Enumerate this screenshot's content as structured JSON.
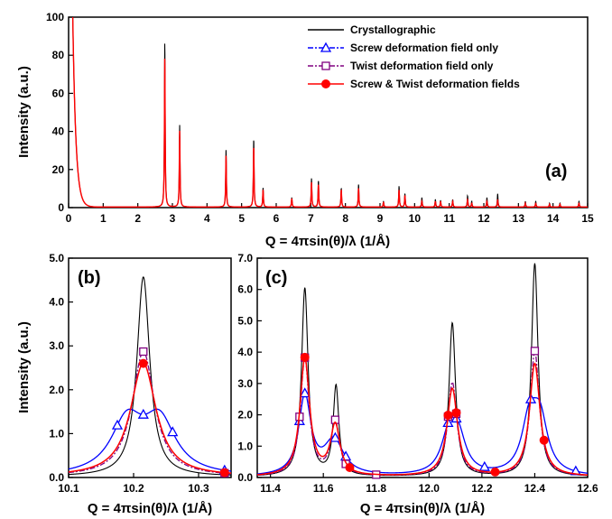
{
  "chart_data": [
    {
      "panel": "(a)",
      "type": "line",
      "xlabel": "Q = 4πsin(θ)/λ (1/Å)",
      "ylabel": "Intensity (a.u.)",
      "xlim": [
        0,
        15
      ],
      "ylim": [
        0,
        100
      ],
      "xticks": [
        "0",
        "1",
        "2",
        "3",
        "4",
        "5",
        "6",
        "7",
        "8",
        "9",
        "10",
        "11",
        "12",
        "13",
        "14",
        "15"
      ],
      "yticks": [
        "0",
        "20",
        "40",
        "60",
        "80",
        "100"
      ],
      "legend": {
        "position": "top-right",
        "entries": [
          {
            "name": "Crystallographic",
            "color": "#000000",
            "marker": "none",
            "dash": "solid"
          },
          {
            "name": "Screw deformation field only",
            "color": "#0000ff",
            "marker": "triangle",
            "dash": "dashdot"
          },
          {
            "name": "Twist deformation field only",
            "color": "#800080",
            "marker": "square",
            "dash": "dashdot"
          },
          {
            "name": "Screw & Twist deformation fields",
            "color": "#ff0000",
            "marker": "circle",
            "dash": "solid"
          }
        ]
      },
      "peaks": [
        {
          "q": 2.78,
          "crystallographic": 87,
          "deformed": 79
        },
        {
          "q": 3.21,
          "crystallographic": 43,
          "deformed": 40
        },
        {
          "q": 4.55,
          "crystallographic": 30,
          "deformed": 27
        },
        {
          "q": 5.35,
          "crystallographic": 36,
          "deformed": 32
        },
        {
          "q": 5.62,
          "crystallographic": 10,
          "deformed": 9
        },
        {
          "q": 6.45,
          "crystallographic": 5,
          "deformed": 4.5
        },
        {
          "q": 7.02,
          "crystallographic": 15,
          "deformed": 13
        },
        {
          "q": 7.22,
          "crystallographic": 14,
          "deformed": 12
        },
        {
          "q": 7.88,
          "crystallographic": 10,
          "deformed": 9
        },
        {
          "q": 8.38,
          "crystallographic": 12,
          "deformed": 10
        },
        {
          "q": 9.1,
          "crystallographic": 3,
          "deformed": 2.5
        },
        {
          "q": 9.55,
          "crystallographic": 11,
          "deformed": 9
        },
        {
          "q": 9.72,
          "crystallographic": 7,
          "deformed": 6
        },
        {
          "q": 10.21,
          "crystallographic": 5,
          "deformed": 3
        },
        {
          "q": 10.6,
          "crystallographic": 4,
          "deformed": 3
        },
        {
          "q": 10.75,
          "crystallographic": 3.5,
          "deformed": 3
        },
        {
          "q": 11.1,
          "crystallographic": 4,
          "deformed": 3
        },
        {
          "q": 11.53,
          "crystallographic": 6,
          "deformed": 4
        },
        {
          "q": 11.65,
          "crystallographic": 3,
          "deformed": 2
        },
        {
          "q": 12.09,
          "crystallographic": 5,
          "deformed": 3
        },
        {
          "q": 12.4,
          "crystallographic": 7,
          "deformed": 4
        },
        {
          "q": 13.2,
          "crystallographic": 3,
          "deformed": 2
        },
        {
          "q": 13.5,
          "crystallographic": 3,
          "deformed": 2
        },
        {
          "q": 13.9,
          "crystallographic": 2,
          "deformed": 1.5
        },
        {
          "q": 14.2,
          "crystallographic": 2,
          "deformed": 1.5
        },
        {
          "q": 14.75,
          "crystallographic": 3,
          "deformed": 2
        }
      ],
      "low_q_decay": {
        "start_q": 0.12,
        "start_value": 100,
        "decay_length": 0.09
      }
    },
    {
      "panel": "(b)",
      "type": "line",
      "xlabel": "Q = 4πsin(θ)/λ (1/Å)",
      "ylabel": "Intensity (a.u.)",
      "xlim": [
        10.1,
        10.35
      ],
      "ylim": [
        0,
        5
      ],
      "xticks": [
        "10.1",
        "10.2",
        "10.3"
      ],
      "yticks": [
        "0.0",
        "1.0",
        "2.0",
        "3.0",
        "4.0",
        "5.0"
      ],
      "series": [
        {
          "name": "Crystallographic",
          "peaks": [
            {
              "q": 10.215,
              "height": 4.55,
              "width": 0.012
            }
          ]
        },
        {
          "name": "Screw deformation field only",
          "peaks": [
            {
              "q": 10.19,
              "height": 1.2,
              "width": 0.03
            },
            {
              "q": 10.24,
              "height": 1.2,
              "width": 0.03
            }
          ],
          "markers_x": [
            10.175,
            10.215,
            10.26,
            10.34
          ]
        },
        {
          "name": "Twist deformation field only",
          "peaks": [
            {
              "q": 10.215,
              "height": 2.85,
              "width": 0.021
            }
          ],
          "markers_x": [
            10.215,
            10.34
          ]
        },
        {
          "name": "Screw & Twist deformation fields",
          "peaks": [
            {
              "q": 10.215,
              "height": 2.58,
              "width": 0.024
            }
          ],
          "markers_x": [
            10.215,
            10.34
          ]
        }
      ]
    },
    {
      "panel": "(c)",
      "type": "line",
      "xlabel": "Q = 4πsin(θ)/λ (1/Å)",
      "xlim": [
        11.35,
        12.6
      ],
      "ylim": [
        0,
        7
      ],
      "xticks": [
        "11.4",
        "11.6",
        "11.8",
        "12.0",
        "12.2",
        "12.4",
        "12.6"
      ],
      "yticks": [
        "0.0",
        "1.0",
        "2.0",
        "3.0",
        "4.0",
        "5.0",
        "6.0",
        "7.0"
      ],
      "series": [
        {
          "name": "Crystallographic",
          "peaks": [
            {
              "q": 11.53,
              "height": 6.0,
              "width": 0.015
            },
            {
              "q": 11.648,
              "height": 2.85,
              "width": 0.013
            },
            {
              "q": 12.088,
              "height": 4.9,
              "width": 0.015
            },
            {
              "q": 12.4,
              "height": 6.8,
              "width": 0.015
            }
          ]
        },
        {
          "name": "Screw deformation field only",
          "peaks": [
            {
              "q": 11.53,
              "height": 2.5,
              "width": 0.028
            },
            {
              "q": 11.64,
              "height": 1.1,
              "width": 0.045
            },
            {
              "q": 12.075,
              "height": 1.15,
              "width": 0.035
            },
            {
              "q": 12.11,
              "height": 1.15,
              "width": 0.035
            },
            {
              "q": 12.38,
              "height": 1.65,
              "width": 0.035
            },
            {
              "q": 12.42,
              "height": 1.65,
              "width": 0.035
            }
          ],
          "markers_x": [
            11.51,
            11.53,
            11.645,
            11.685,
            12.072,
            12.103,
            12.21,
            12.385,
            12.555
          ]
        },
        {
          "name": "Twist deformation field only",
          "peaks": [
            {
              "q": 11.53,
              "height": 3.75,
              "width": 0.02
            },
            {
              "q": 11.645,
              "height": 1.7,
              "width": 0.02
            },
            {
              "q": 12.088,
              "height": 3.0,
              "width": 0.021
            },
            {
              "q": 12.4,
              "height": 4.0,
              "width": 0.021
            }
          ],
          "markers_x": [
            11.51,
            11.53,
            11.645,
            11.685,
            11.8,
            12.072,
            12.103,
            12.4
          ]
        },
        {
          "name": "Screw & Twist deformation fields",
          "peaks": [
            {
              "q": 11.53,
              "height": 3.75,
              "width": 0.022
            },
            {
              "q": 11.645,
              "height": 1.6,
              "width": 0.022
            },
            {
              "q": 12.088,
              "height": 2.8,
              "width": 0.024
            },
            {
              "q": 12.4,
              "height": 3.6,
              "width": 0.024
            }
          ],
          "markers_x": [
            11.53,
            11.7,
            12.072,
            12.103,
            12.25,
            12.435
          ]
        }
      ]
    }
  ],
  "colors": {
    "crystallographic": "#000000",
    "screw": "#0000ff",
    "twist": "#800080",
    "combined": "#ff0000"
  }
}
